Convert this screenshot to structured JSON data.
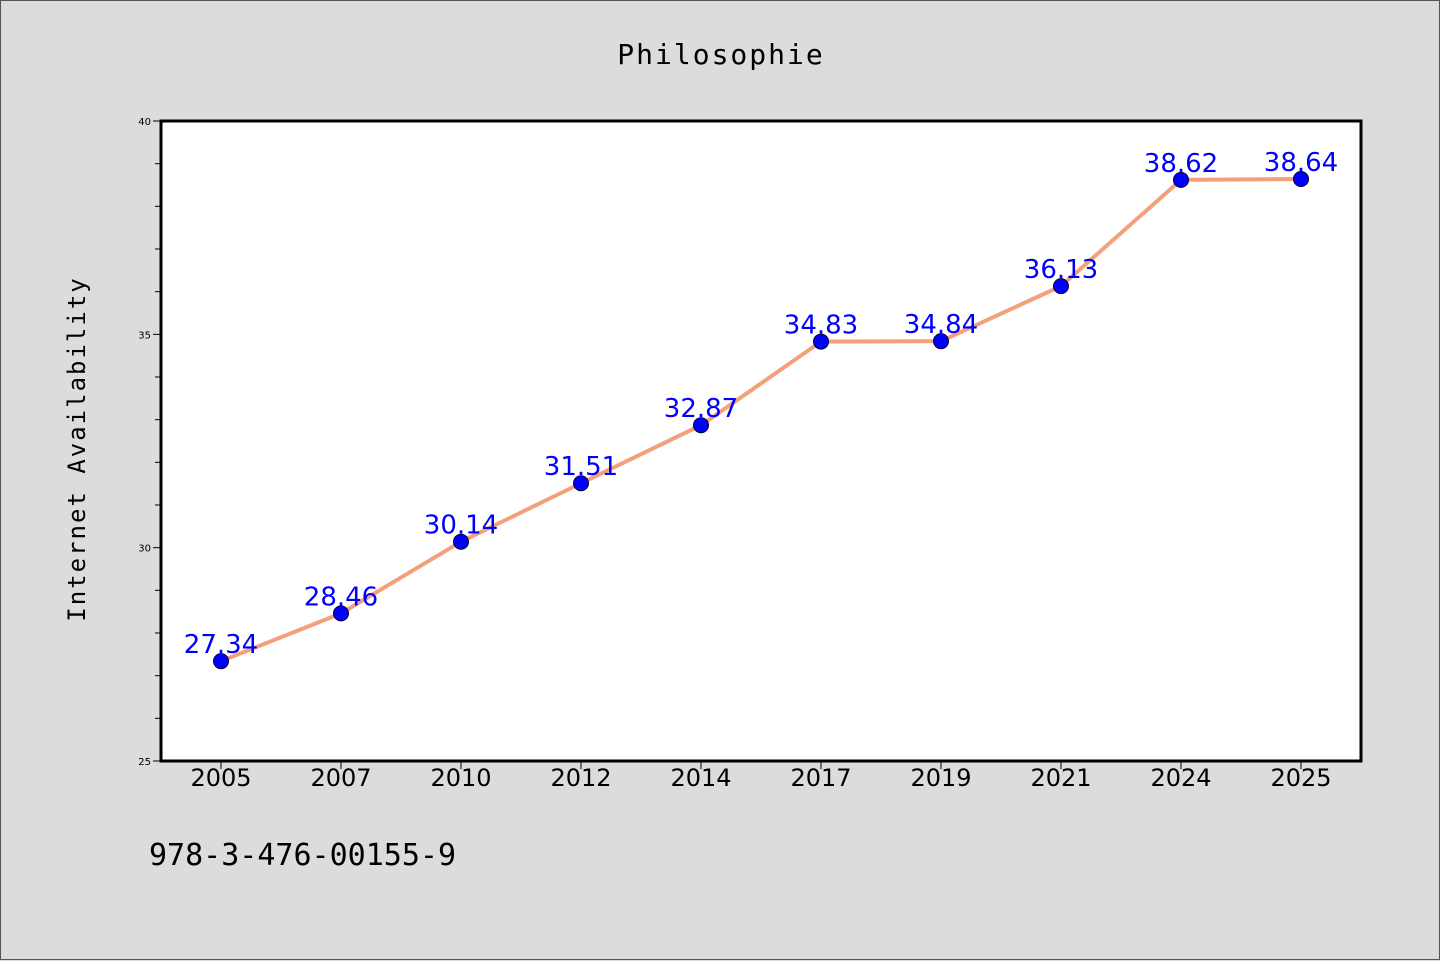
{
  "chart_data": {
    "type": "line",
    "title": "Philosophie",
    "xlabel": "",
    "ylabel": "Internet Availability",
    "categories": [
      "2005",
      "2007",
      "2010",
      "2012",
      "2014",
      "2017",
      "2019",
      "2021",
      "2024",
      "2025"
    ],
    "values": [
      27.34,
      28.46,
      30.14,
      31.51,
      32.87,
      34.83,
      34.84,
      36.13,
      38.62,
      38.64
    ],
    "data_labels": [
      "27.34",
      "28.46",
      "30.14",
      "31.51",
      "32.87",
      "34.83",
      "34.84",
      "36.13",
      "38.62",
      "38.64"
    ],
    "ylim": [
      25,
      40
    ],
    "yticks": [
      "25",
      "30",
      "35",
      "40"
    ],
    "grid": false,
    "line_color": "#f4a07a",
    "marker_color": "#0000ff",
    "label_color": "#0000ff"
  },
  "footer": {
    "isbn": "978-3-476-00155-9"
  }
}
